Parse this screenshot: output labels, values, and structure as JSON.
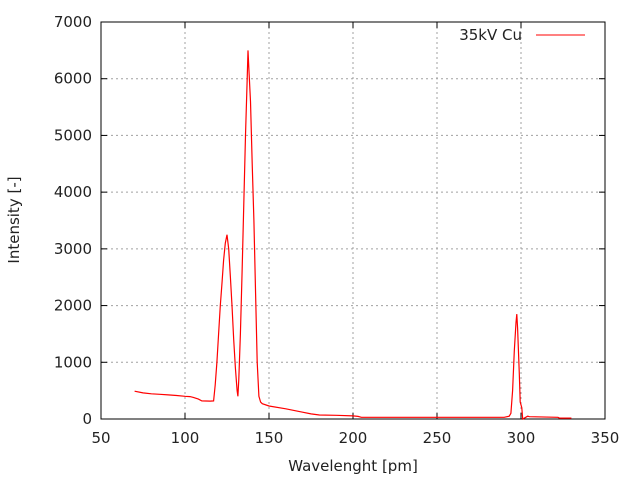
{
  "chart_data": {
    "type": "line",
    "title": "",
    "xlabel": "Wavelenght [pm]",
    "ylabel": "Intensity [-]",
    "xlim": [
      50,
      350
    ],
    "ylim": [
      0,
      7000
    ],
    "xticks": [
      50,
      100,
      150,
      200,
      250,
      300,
      350
    ],
    "yticks": [
      0,
      1000,
      2000,
      3000,
      4000,
      5000,
      6000,
      7000
    ],
    "grid": true,
    "legend_position": "top-right",
    "series": [
      {
        "name": "35kV Cu",
        "color": "#ff0000",
        "x": [
          70,
          75,
          80,
          85,
          90,
          95,
          100,
          103,
          105,
          108,
          110,
          115,
          117,
          118,
          119,
          120,
          121,
          122,
          123,
          124,
          125,
          126,
          127,
          128,
          129,
          130,
          131,
          131.5,
          132,
          133,
          134,
          135,
          136,
          137,
          137.5,
          138,
          139,
          140,
          141,
          142,
          143,
          144,
          145,
          146,
          150,
          160,
          170,
          175,
          180,
          190,
          200,
          203,
          205,
          250,
          290,
          293,
          294,
          295,
          296,
          297,
          297.5,
          298,
          299,
          299.5,
          300.5,
          301,
          304,
          305,
          322,
          323,
          330
        ],
        "y": [
          490,
          460,
          445,
          435,
          425,
          415,
          400,
          395,
          380,
          350,
          320,
          315,
          320,
          600,
          1000,
          1500,
          2000,
          2400,
          2800,
          3100,
          3250,
          3000,
          2500,
          2000,
          1400,
          900,
          500,
          400,
          700,
          1500,
          2600,
          3800,
          5000,
          6000,
          6500,
          6200,
          5600,
          4500,
          3500,
          2200,
          1000,
          400,
          300,
          270,
          230,
          180,
          120,
          90,
          70,
          65,
          55,
          45,
          30,
          30,
          30,
          50,
          100,
          500,
          1200,
          1700,
          1850,
          1600,
          800,
          300,
          200,
          0,
          50,
          40,
          30,
          15,
          15
        ]
      }
    ]
  }
}
